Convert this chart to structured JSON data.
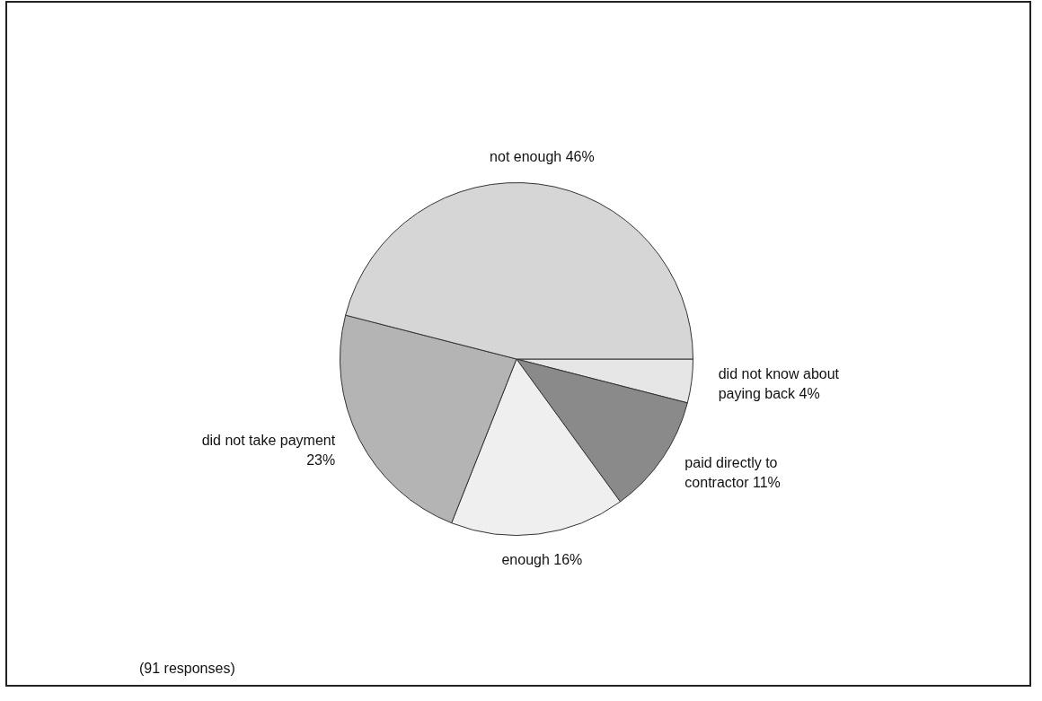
{
  "chart_data": {
    "type": "pie",
    "categories": [
      "did not know about paying back",
      "paid directly to contractor",
      "enough",
      "did not take payment",
      "not enough"
    ],
    "values": [
      4,
      11,
      16,
      23,
      46
    ],
    "value_labels": [
      "4%",
      "11%",
      "16%",
      "23%",
      "46%"
    ],
    "colors": [
      "#e6e6e6",
      "#8a8a8a",
      "#efefef",
      "#b4b4b4",
      "#d6d6d6"
    ],
    "annotations": [
      "(91 responses)"
    ],
    "legend": false
  }
}
